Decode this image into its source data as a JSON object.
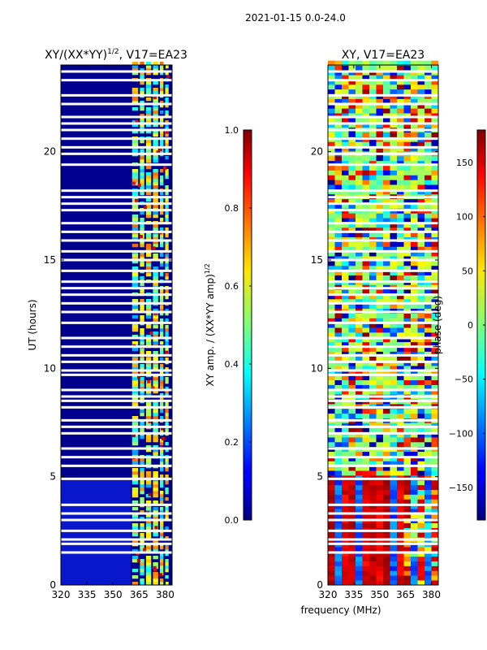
{
  "figure": {
    "suptitle": "2021-01-15 0.0-24.0",
    "xlabel": "frequency (MHz)"
  },
  "chart_data": [
    {
      "type": "heatmap",
      "title": "XY/(XX*YY)",
      "title_exp": "1/2",
      "title_suffix": ", V17=EA23",
      "ylabel": "UT (hours)",
      "xlim": [
        320,
        384
      ],
      "ylim": [
        0,
        24
      ],
      "xticks": [
        "320",
        "335",
        "350",
        "365",
        "380"
      ],
      "xtick_values": [
        320,
        335,
        350,
        365,
        380
      ],
      "yticks": [
        "0",
        "5",
        "10",
        "15",
        "20"
      ],
      "ytick_values": [
        0,
        5,
        10,
        15,
        20
      ],
      "colorbar": {
        "label": "XY amp. / (XX*YY amp)",
        "label_exp": "1/2",
        "range": [
          0,
          1
        ],
        "ticks": [
          "0.0",
          "0.2",
          "0.4",
          "0.6",
          "0.8",
          "1.0"
        ],
        "tick_values": [
          0,
          0.2,
          0.4,
          0.6,
          0.8,
          1.0
        ],
        "colormap": "jet"
      },
      "flagged_ut_hours": [
        1.5,
        1.9,
        2.1,
        2.5,
        3.0,
        3.3,
        3.7,
        4.9,
        5.5,
        5.9,
        6.3,
        7.0,
        7.3,
        7.6,
        8.2,
        8.5,
        8.7,
        9.0,
        9.7,
        9.9,
        10.3,
        10.6,
        11.0,
        11.4,
        12.1,
        12.6,
        13.0,
        13.4,
        13.7,
        14.0,
        14.5,
        15.0,
        15.4,
        15.9,
        16.3,
        16.7,
        17.3,
        17.6,
        17.9,
        18.2,
        19.4,
        19.9,
        20.2,
        20.6,
        21.0,
        21.3,
        21.6,
        22.2,
        22.6,
        23.3,
        23.7
      ],
      "notes": "Low amplitude (~0.05-0.1) for 320-361 MHz; bright stripes (0.3-0.8) for 361-382 MHz"
    },
    {
      "type": "heatmap",
      "title": "XY, V17=EA23",
      "xlim": [
        320,
        384
      ],
      "ylim": [
        0,
        24
      ],
      "xticks": [
        "320",
        "335",
        "350",
        "365",
        "380"
      ],
      "xtick_values": [
        320,
        335,
        350,
        365,
        380
      ],
      "yticks": [
        "0",
        "5",
        "10",
        "15",
        "20"
      ],
      "ytick_values": [
        0,
        5,
        10,
        15,
        20
      ],
      "colorbar": {
        "label": "phase (deg)",
        "range": [
          -180,
          180
        ],
        "ticks": [
          "−150",
          "−100",
          "−50",
          "0",
          "50",
          "100",
          "150"
        ],
        "tick_values": [
          -150,
          -100,
          -50,
          0,
          50,
          100,
          150
        ],
        "colormap": "jet"
      },
      "flagged_ut_hours": [
        1.5,
        1.9,
        2.1,
        2.5,
        3.0,
        3.3,
        3.7,
        4.9,
        5.5,
        5.9,
        6.3,
        7.0,
        7.3,
        7.6,
        8.2,
        8.5,
        8.7,
        9.0,
        9.7,
        9.9,
        10.3,
        10.6,
        11.0,
        11.4,
        12.1,
        12.6,
        13.0,
        13.4,
        13.7,
        14.0,
        14.5,
        15.0,
        15.4,
        15.9,
        16.3,
        16.7,
        17.3,
        17.6,
        17.9,
        18.2,
        19.4,
        19.9,
        20.2,
        20.6,
        21.0,
        21.3,
        21.6,
        22.2,
        22.6,
        23.3,
        23.7
      ],
      "notes": "Noisy phase after 5 UT; before 5 UT vertical red/blue stripes"
    }
  ]
}
